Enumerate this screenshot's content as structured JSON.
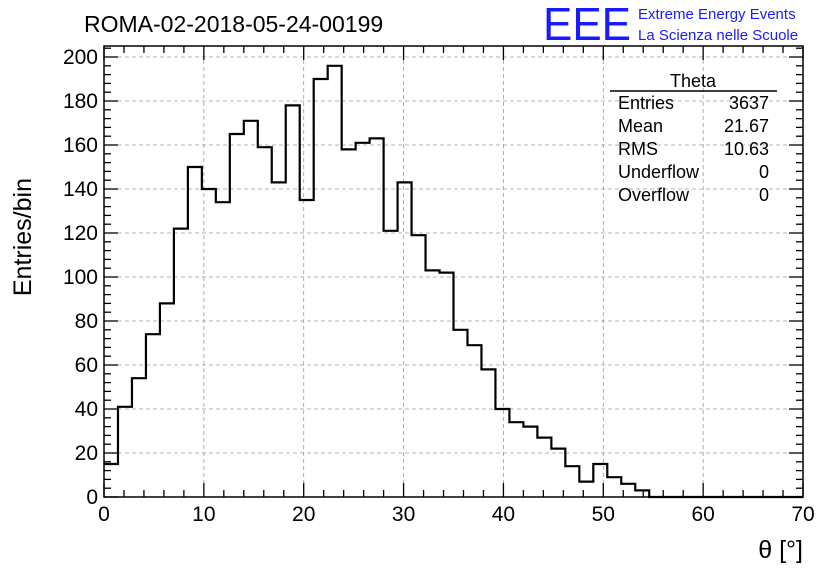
{
  "logo": {
    "mark": "EEE",
    "line1": "Extreme Energy Events",
    "line2": "La Scienza nelle Scuole",
    "color": "#1a1aff"
  },
  "stats": {
    "name": "Theta",
    "rows": [
      {
        "label": "Entries",
        "value": "3637"
      },
      {
        "label": "Mean",
        "value": "21.67"
      },
      {
        "label": "RMS",
        "value": "10.63"
      },
      {
        "label": "Underflow",
        "value": "0"
      },
      {
        "label": "Overflow",
        "value": "0"
      }
    ]
  },
  "chart_data": {
    "type": "bar",
    "style": "step-histogram",
    "title": "ROMA-02-2018-05-24-00199",
    "xlabel": "θ [°]",
    "ylabel": "Entries/bin",
    "xlim": [
      0,
      70
    ],
    "ylim": [
      0,
      205
    ],
    "xticks": [
      0,
      10,
      20,
      30,
      40,
      50,
      60,
      70
    ],
    "yticks": [
      0,
      20,
      40,
      60,
      80,
      100,
      120,
      140,
      160,
      180,
      200
    ],
    "grid": true,
    "bin_width": 1.4,
    "bin_edges_start": 0,
    "values": [
      15,
      41,
      54,
      74,
      88,
      122,
      150,
      140,
      134,
      165,
      171,
      159,
      143,
      178,
      135,
      190,
      196,
      158,
      161,
      163,
      121,
      143,
      119,
      103,
      102,
      76,
      69,
      58,
      40,
      34,
      32,
      27,
      22,
      14,
      7,
      15,
      9,
      6,
      3,
      0,
      0,
      0,
      0,
      0,
      0,
      0,
      0,
      0,
      0,
      0
    ],
    "line_color": "#000000"
  }
}
